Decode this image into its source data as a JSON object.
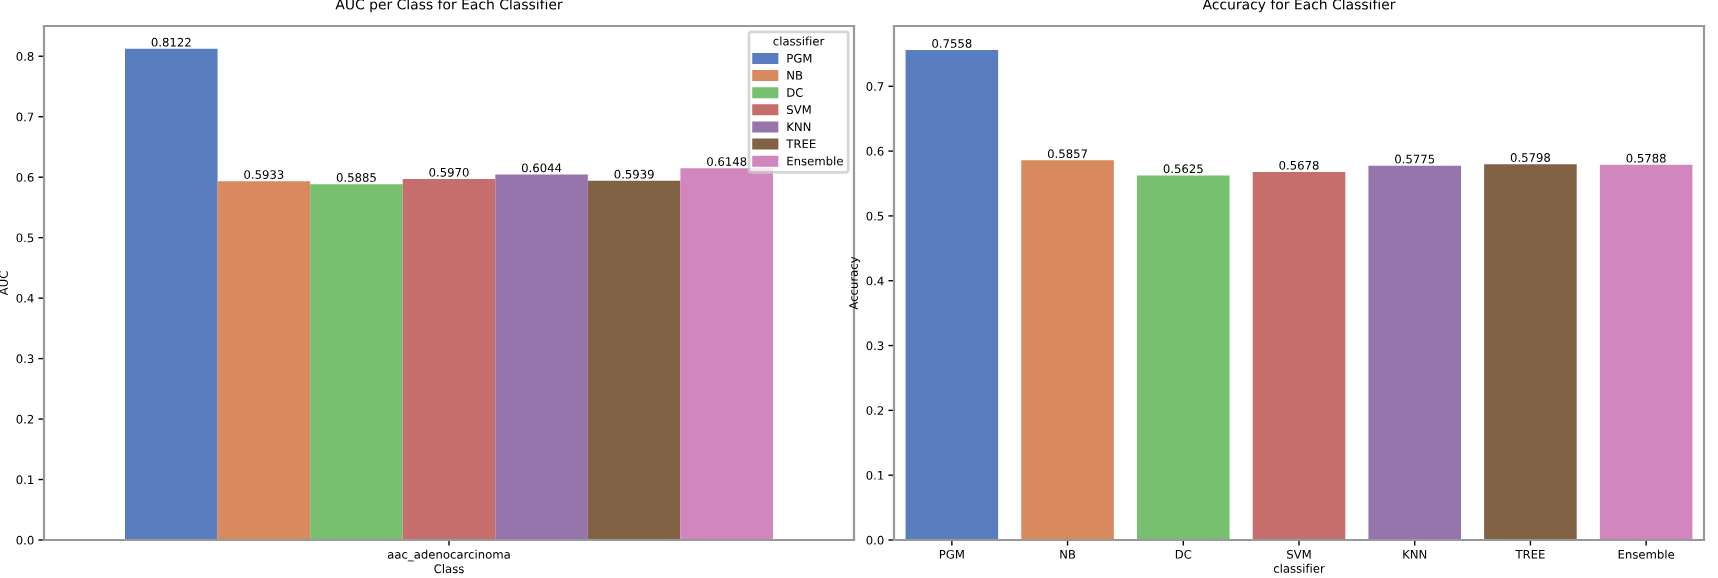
{
  "chart_data": [
    {
      "type": "bar",
      "title": "AUC per Class for Each Classifier",
      "xlabel": "Class",
      "ylabel": "AUC",
      "categories": [
        "aac_adenocarcinoma"
      ],
      "legend_title": "classifier",
      "legend": "top right",
      "ylim": [
        0,
        0.85
      ],
      "yticks": [
        {
          "value": 0,
          "label": "0.0"
        },
        0.1,
        0.2,
        0.3,
        0.4,
        0.5,
        0.6,
        0.7,
        0.8
      ],
      "grid": false,
      "series": [
        {
          "name": "PGM",
          "color": "#5a7dc0",
          "values": [
            0.8122
          ],
          "value_labels": [
            "0.8122"
          ]
        },
        {
          "name": "NB",
          "color": "#d88a5e",
          "values": [
            0.5933
          ],
          "value_labels": [
            "0.5933"
          ]
        },
        {
          "name": "DC",
          "color": "#76c06f",
          "values": [
            0.5885
          ],
          "value_labels": [
            "0.5885"
          ]
        },
        {
          "name": "SVM",
          "color": "#c66e6c",
          "values": [
            0.597
          ],
          "value_labels": [
            "0.5970"
          ]
        },
        {
          "name": "KNN",
          "color": "#9575ab",
          "values": [
            0.6044
          ],
          "value_labels": [
            "0.6044"
          ]
        },
        {
          "name": "TREE",
          "color": "#826245",
          "values": [
            0.5939
          ],
          "value_labels": [
            "0.5939"
          ]
        },
        {
          "name": "Ensemble",
          "color": "#d187bd",
          "values": [
            0.6148
          ],
          "value_labels": [
            "0.6148"
          ]
        }
      ]
    },
    {
      "type": "bar",
      "title": "Accuracy for Each Classifier",
      "xlabel": "classifier",
      "ylabel": "Accuracy",
      "categories": [
        "PGM",
        "NB",
        "DC",
        "SVM",
        "KNN",
        "TREE",
        "Ensemble"
      ],
      "ylim": [
        0,
        0.793
      ],
      "yticks": [
        {
          "value": 0,
          "label": "0.0"
        },
        0.1,
        0.2,
        0.3,
        0.4,
        0.5,
        0.6,
        0.7
      ],
      "grid": false,
      "values": [
        0.7558,
        0.5857,
        0.5625,
        0.5678,
        0.5775,
        0.5798,
        0.5788
      ],
      "value_labels": [
        "0.7558",
        "0.5857",
        "0.5625",
        "0.5678",
        "0.5775",
        "0.5798",
        "0.5788"
      ],
      "colors": [
        "#5a7dc0",
        "#d88a5e",
        "#76c06f",
        "#c66e6c",
        "#9575ab",
        "#826245",
        "#d187bd"
      ]
    }
  ]
}
